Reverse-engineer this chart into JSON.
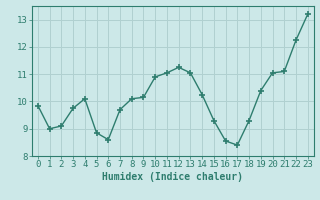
{
  "x": [
    0,
    1,
    2,
    3,
    4,
    5,
    6,
    7,
    8,
    9,
    10,
    11,
    12,
    13,
    14,
    15,
    16,
    17,
    18,
    19,
    20,
    21,
    22,
    23
  ],
  "y": [
    9.85,
    9.0,
    9.1,
    9.75,
    10.1,
    8.85,
    8.6,
    9.7,
    10.1,
    10.15,
    10.9,
    11.05,
    11.25,
    11.05,
    10.25,
    9.3,
    8.55,
    8.4,
    9.3,
    10.4,
    11.05,
    11.1,
    12.25,
    13.2
  ],
  "line_color": "#2e7d6e",
  "marker": "+",
  "marker_size": 4,
  "bg_color": "#cce8e8",
  "grid_color": "#b0d0d0",
  "xlabel": "Humidex (Indice chaleur)",
  "ylabel": "",
  "xlim": [
    -0.5,
    23.5
  ],
  "ylim": [
    8,
    13.5
  ],
  "yticks": [
    8,
    9,
    10,
    11,
    12,
    13
  ],
  "xticks": [
    0,
    1,
    2,
    3,
    4,
    5,
    6,
    7,
    8,
    9,
    10,
    11,
    12,
    13,
    14,
    15,
    16,
    17,
    18,
    19,
    20,
    21,
    22,
    23
  ],
  "line_color_dark": "#1a5c50",
  "xlabel_fontsize": 7,
  "tick_fontsize": 6.5,
  "line_width": 1.0,
  "marker_lw": 1.2
}
